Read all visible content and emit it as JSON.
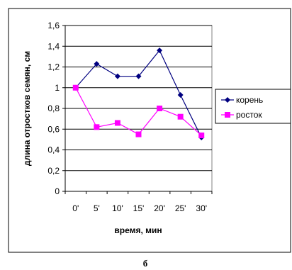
{
  "caption": "б",
  "chart_data": {
    "type": "line",
    "xlabel": "время, мин",
    "ylabel": "длина отростков семян, см",
    "categories": [
      "0'",
      "5'",
      "10'",
      "15'",
      "20'",
      "25'",
      "30'"
    ],
    "ylim": [
      0,
      1.6
    ],
    "yticks": [
      "0",
      "0,2",
      "0,4",
      "0,6",
      "0,8",
      "1",
      "1,2",
      "1,4",
      "1,6"
    ],
    "grid": true,
    "legend_position": "right",
    "series": [
      {
        "name": "корень",
        "values": [
          1.0,
          1.23,
          1.11,
          1.11,
          1.36,
          0.93,
          0.52
        ],
        "color": "#000080",
        "marker": "diamond"
      },
      {
        "name": "росток",
        "values": [
          1.0,
          0.62,
          0.66,
          0.55,
          0.8,
          0.72,
          0.54
        ],
        "color": "#ff00ff",
        "marker": "square"
      }
    ]
  }
}
